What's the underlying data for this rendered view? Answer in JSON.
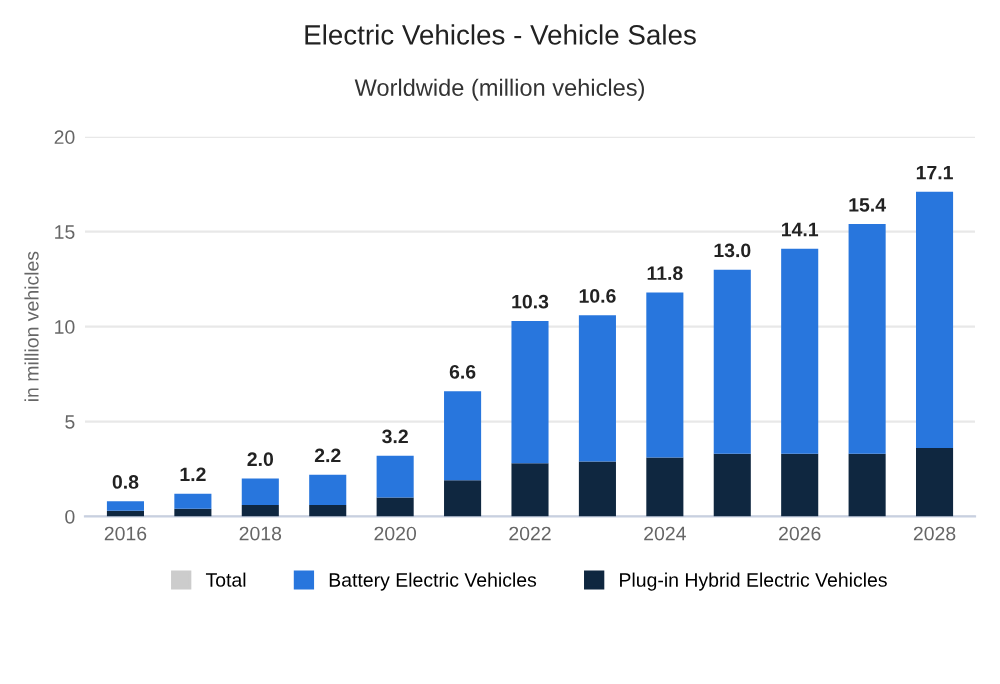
{
  "chart_data": {
    "type": "bar",
    "title": "Electric Vehicles - Vehicle Sales",
    "subtitle": "Worldwide (million vehicles)",
    "ylabel": "in million vehicles",
    "categories": [
      "2016",
      null,
      "2018",
      null,
      "2020",
      null,
      "2022",
      null,
      "2024",
      null,
      "2026",
      null,
      "2028"
    ],
    "stacked": true,
    "series": [
      {
        "name": "Plug-in Hybrid Electric Vehicles",
        "color": "#0f2740",
        "values": [
          0.3,
          0.4,
          0.6,
          0.6,
          1.0,
          1.9,
          2.8,
          2.9,
          3.1,
          3.3,
          3.3,
          3.3,
          3.6
        ]
      },
      {
        "name": "Battery Electric Vehicles",
        "color": "#2876dd",
        "values": [
          0.5,
          0.8,
          1.4,
          1.6,
          2.2,
          4.7,
          7.5,
          7.7,
          8.7,
          9.7,
          10.8,
          12.1,
          13.5
        ]
      },
      {
        "name": "Total",
        "color": "#cccccc",
        "values": [
          null,
          null,
          null,
          null,
          null,
          null,
          null,
          null,
          null,
          null,
          null,
          null,
          null
        ]
      }
    ],
    "totals": [
      "0.8",
      "1.2",
      "2.0",
      "2.2",
      "3.2",
      "6.6",
      "10.3",
      "10.6",
      "11.8",
      "13.0",
      "14.1",
      "15.4",
      "17.1"
    ],
    "ylim": [
      0,
      20
    ],
    "yticks": [
      0,
      5,
      10,
      15,
      20
    ],
    "grid": "y",
    "legend": "bottom"
  }
}
